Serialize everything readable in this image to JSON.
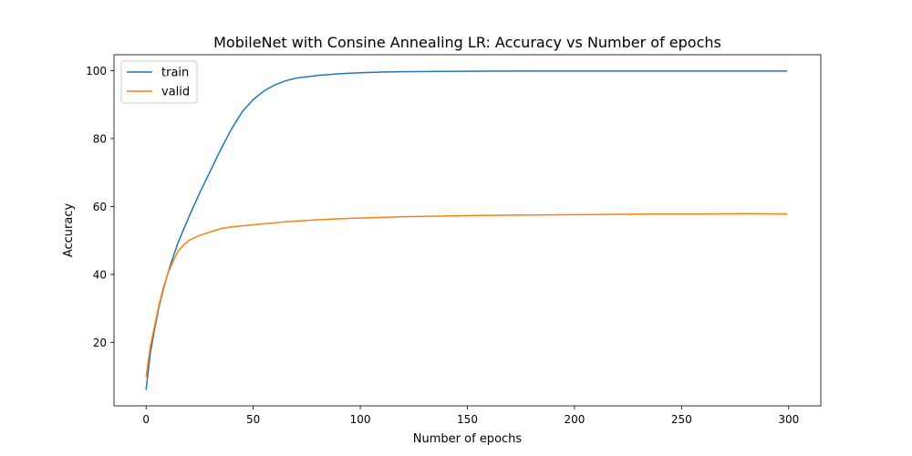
{
  "chart_data": {
    "type": "line",
    "title": "MobileNet with Consine Annealing LR: Accuracy vs Number of epochs",
    "xlabel": "Number of epochs",
    "ylabel": "Accuracy",
    "xlim": [
      -15,
      315
    ],
    "ylim": [
      1.3,
      104.7
    ],
    "xticks": [
      0,
      50,
      100,
      150,
      200,
      250,
      300
    ],
    "yticks": [
      20,
      40,
      60,
      80,
      100
    ],
    "grid": false,
    "legend": {
      "position": "upper-left"
    },
    "x": [
      0,
      2,
      4,
      6,
      8,
      10,
      12,
      15,
      18,
      20,
      25,
      30,
      35,
      40,
      45,
      50,
      55,
      60,
      65,
      70,
      75,
      80,
      90,
      100,
      110,
      120,
      140,
      160,
      180,
      200,
      220,
      240,
      260,
      280,
      299
    ],
    "series": [
      {
        "name": "train",
        "color": "#1f77b4",
        "values": [
          6.2,
          17.0,
          24.0,
          30.5,
          35.5,
          40.0,
          44.0,
          49.5,
          54.0,
          57.0,
          64.0,
          70.5,
          77.0,
          83.0,
          88.0,
          91.5,
          94.0,
          95.8,
          97.0,
          97.8,
          98.2,
          98.6,
          99.1,
          99.4,
          99.6,
          99.7,
          99.8,
          99.85,
          99.9,
          99.9,
          99.9,
          99.9,
          99.9,
          99.9,
          99.9
        ]
      },
      {
        "name": "valid",
        "color": "#ff7f0e",
        "values": [
          10.0,
          19.0,
          25.0,
          31.0,
          36.0,
          40.0,
          43.0,
          47.0,
          49.0,
          50.0,
          51.5,
          52.5,
          53.5,
          54.0,
          54.3,
          54.6,
          54.9,
          55.2,
          55.5,
          55.7,
          55.9,
          56.1,
          56.4,
          56.6,
          56.8,
          57.0,
          57.2,
          57.4,
          57.5,
          57.6,
          57.7,
          57.8,
          57.8,
          57.9,
          57.8
        ]
      }
    ]
  }
}
